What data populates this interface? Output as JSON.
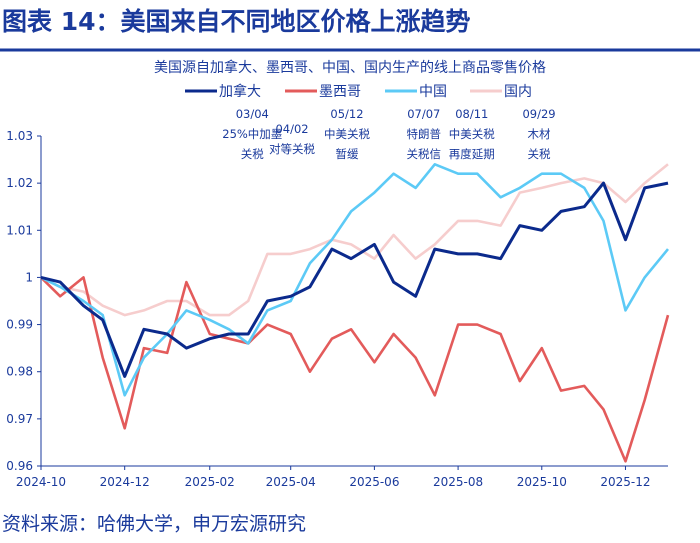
{
  "figure_title": "图表 14：美国来自不同地区价格上涨趋势",
  "source": "资料来源：哈佛大学，申万宏源研究",
  "chart_data": {
    "type": "line",
    "title": "美国源自加拿大、墨西哥、中国、国内生产的线上商品零售价格",
    "xlabel": "",
    "ylabel": "",
    "ylim": [
      0.96,
      1.03
    ],
    "xlim": [
      "2024-10-01",
      "2026-01-01"
    ],
    "grid": false,
    "legend_position": "top",
    "y_ticks": [
      "0.96",
      "0.97",
      "0.98",
      "0.99",
      "1",
      "1.01",
      "1.02",
      "1.03"
    ],
    "x_ticks": [
      "2024-10",
      "2024-12",
      "2025-02",
      "2025-04",
      "2025-06",
      "2025-08",
      "2025-10",
      "2025-12"
    ],
    "x": [
      "2024-10-01",
      "2024-10-15",
      "2024-11-01",
      "2024-11-15",
      "2024-12-01",
      "2024-12-15",
      "2025-01-01",
      "2025-01-15",
      "2025-02-01",
      "2025-02-15",
      "2025-03-01",
      "2025-03-15",
      "2025-04-01",
      "2025-04-15",
      "2025-05-01",
      "2025-05-15",
      "2025-06-01",
      "2025-06-15",
      "2025-07-01",
      "2025-07-15",
      "2025-08-01",
      "2025-08-15",
      "2025-09-01",
      "2025-09-15",
      "2025-10-01",
      "2025-10-15",
      "2025-11-01",
      "2025-11-15",
      "2025-12-01",
      "2025-12-15",
      "2026-01-01"
    ],
    "series": [
      {
        "name": "加拿大",
        "color": "#0b2a8c",
        "values": [
          1.0,
          0.999,
          0.994,
          0.991,
          0.979,
          0.989,
          0.988,
          0.985,
          0.987,
          0.988,
          0.988,
          0.995,
          0.996,
          0.998,
          1.006,
          1.004,
          1.007,
          0.999,
          0.996,
          1.006,
          1.005,
          1.005,
          1.004,
          1.011,
          1.01,
          1.014,
          1.015,
          1.02,
          1.008,
          1.019,
          1.02
        ]
      },
      {
        "name": "墨西哥",
        "color": "#e35b5b",
        "values": [
          1.0,
          0.996,
          1.0,
          0.983,
          0.968,
          0.985,
          0.984,
          0.999,
          0.988,
          0.987,
          0.986,
          0.99,
          0.988,
          0.98,
          0.987,
          0.989,
          0.982,
          0.988,
          0.983,
          0.975,
          0.99,
          0.99,
          0.988,
          0.978,
          0.985,
          0.976,
          0.977,
          0.972,
          0.961,
          0.974,
          0.992
        ]
      },
      {
        "name": "中国",
        "color": "#5ccaf6",
        "values": [
          1.0,
          0.998,
          0.995,
          0.992,
          0.975,
          0.983,
          0.988,
          0.993,
          0.991,
          0.989,
          0.986,
          0.993,
          0.995,
          1.003,
          1.008,
          1.014,
          1.018,
          1.022,
          1.019,
          1.024,
          1.022,
          1.022,
          1.017,
          1.019,
          1.022,
          1.022,
          1.019,
          1.012,
          0.993,
          1.0,
          1.006
        ]
      },
      {
        "name": "国内",
        "color": "#f6cdcd",
        "values": [
          1.0,
          0.998,
          0.997,
          0.994,
          0.992,
          0.993,
          0.995,
          0.995,
          0.992,
          0.992,
          0.995,
          1.005,
          1.005,
          1.006,
          1.008,
          1.007,
          1.004,
          1.009,
          1.004,
          1.007,
          1.012,
          1.012,
          1.011,
          1.018,
          1.019,
          1.02,
          1.021,
          1.02,
          1.016,
          1.02,
          1.024
        ]
      }
    ],
    "annotations": [
      {
        "date": "2025-03-04",
        "lines": [
          "03/04",
          "25%中加墨",
          "关税"
        ]
      },
      {
        "date": "2025-04-02",
        "lines": [
          "04/02",
          "对等关税"
        ]
      },
      {
        "date": "2025-05-12",
        "lines": [
          "05/12",
          "中美关税",
          "暂缓"
        ]
      },
      {
        "date": "2025-07-07",
        "lines": [
          "07/07",
          "特朗普",
          "关税信"
        ]
      },
      {
        "date": "2025-08-11",
        "lines": [
          "08/11",
          "中美关税",
          "再度延期"
        ]
      },
      {
        "date": "2025-09-29",
        "lines": [
          "09/29",
          "木材",
          "关税"
        ]
      }
    ]
  }
}
